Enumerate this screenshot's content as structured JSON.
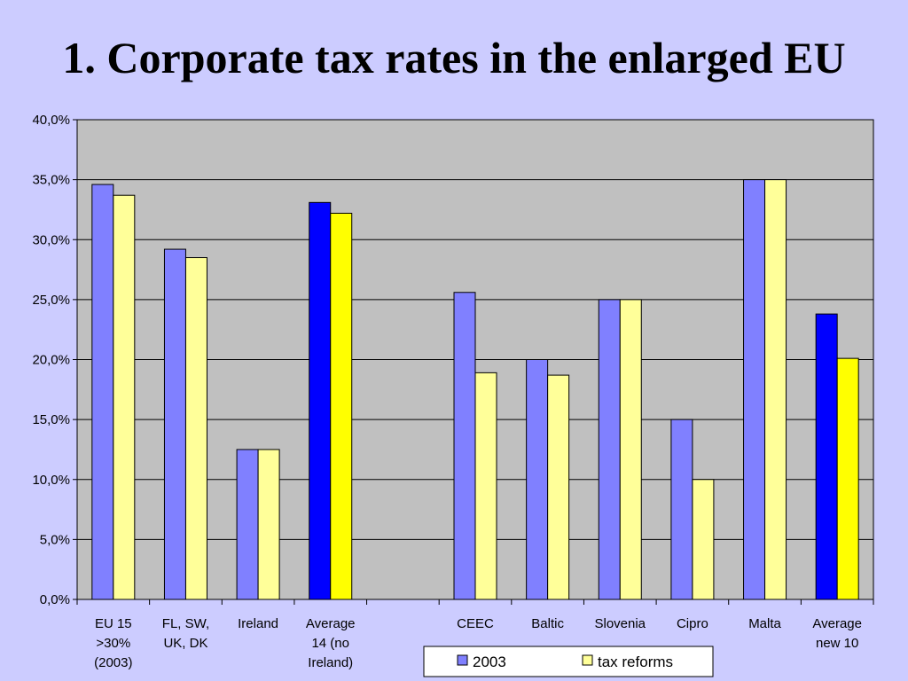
{
  "title": "1. Corporate tax rates in the enlarged EU",
  "chart_data": {
    "type": "bar",
    "categories": [
      [
        "EU 15",
        ">30%",
        "(2003)"
      ],
      [
        "FL, SW,",
        "UK, DK"
      ],
      [
        "Ireland"
      ],
      [
        "Average",
        "14 (no",
        "Ireland)"
      ],
      [],
      [
        "CEEC"
      ],
      [
        "Baltic"
      ],
      [
        "Slovenia"
      ],
      [
        "Cipro"
      ],
      [
        "Malta"
      ],
      [
        "Average",
        "new 10"
      ]
    ],
    "series": [
      {
        "name": "2003",
        "color": "#8080ff",
        "highlight_color": "#0000ff",
        "values": [
          34.6,
          29.2,
          12.5,
          33.1,
          null,
          25.6,
          20.0,
          25.0,
          15.0,
          35.0,
          23.8
        ]
      },
      {
        "name": "tax reforms",
        "color": "#ffff99",
        "highlight_color": "#ffff00",
        "values": [
          33.7,
          28.5,
          12.5,
          32.2,
          null,
          18.9,
          18.7,
          25.0,
          10.0,
          35.0,
          20.1
        ]
      }
    ],
    "highlight_categories": [
      3,
      10
    ],
    "ylim": [
      0,
      40
    ],
    "yticks": [
      "0,0%",
      "5,0%",
      "10,0%",
      "15,0%",
      "20,0%",
      "25,0%",
      "30,0%",
      "35,0%",
      "40,0%"
    ],
    "grid": true,
    "legend_position": "bottom",
    "plot_background": "#c0c0c0"
  }
}
